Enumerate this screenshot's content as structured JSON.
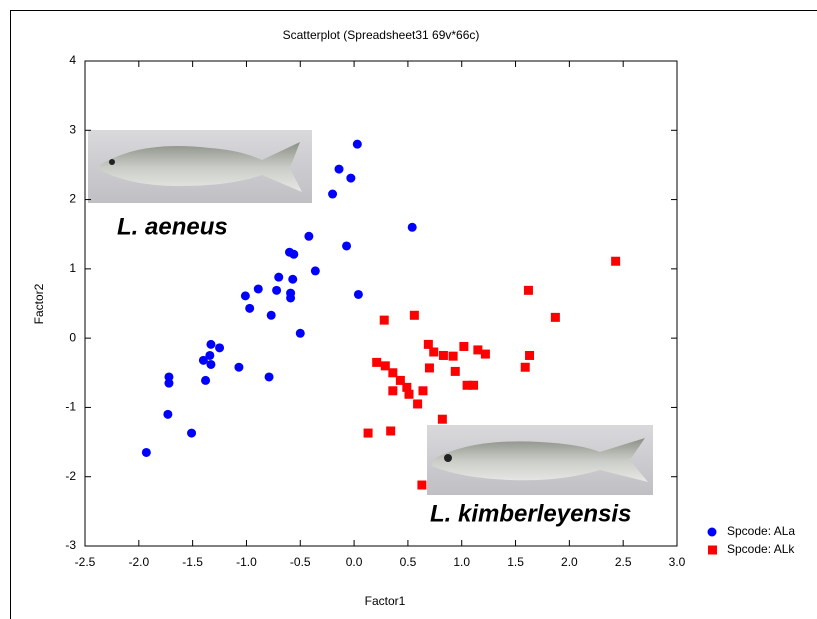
{
  "chart_data": {
    "type": "scatter",
    "title": "Scatterplot (Spreadsheet31 69v*66c)",
    "x_label": "Factor1",
    "y_label": "Factor2",
    "annotations": [
      "L. aeneus",
      "L. kimberleyensis"
    ],
    "xlim": [
      -2.5,
      3.0
    ],
    "ylim": [
      -3,
      4
    ],
    "xticks": [
      -2.5,
      {
        "value": -2,
        "label": "-2.0"
      },
      -1.5,
      {
        "value": -1,
        "label": "-1.0"
      },
      -0.5,
      {
        "value": 0,
        "label": "0.0"
      },
      0.5,
      {
        "value": 1,
        "label": "1.0"
      },
      1.5,
      {
        "value": 2,
        "label": "2.0"
      },
      2.5,
      {
        "value": 3,
        "label": "3.0"
      }
    ],
    "yticks": [
      -3,
      -2,
      -1,
      0,
      1,
      2,
      3,
      4
    ],
    "legend": "right",
    "series": [
      {
        "name": "Spcode: ALa",
        "color": "#0000ff",
        "marker": "circle",
        "x": [
          0.03,
          -0.14,
          -0.03,
          -0.2,
          -0.42,
          -0.07,
          0.54,
          -0.6,
          -0.56,
          -0.36,
          -0.7,
          -0.57,
          -0.89,
          -0.72,
          -0.59,
          -0.59,
          0.04,
          -1.01,
          -0.97,
          -0.77,
          -0.5,
          -1.33,
          -1.25,
          -1.34,
          -1.4,
          -1.33,
          -1.07,
          -1.72,
          -0.79,
          -1.38,
          -1.72,
          -1.73,
          -1.51,
          -1.93
        ],
        "values": [
          2.8,
          2.44,
          2.31,
          2.08,
          1.47,
          1.33,
          1.6,
          1.24,
          1.21,
          0.97,
          0.88,
          0.85,
          0.71,
          0.69,
          0.65,
          0.58,
          0.63,
          0.61,
          0.43,
          0.33,
          0.07,
          -0.09,
          -0.14,
          -0.25,
          -0.32,
          -0.38,
          -0.42,
          -0.56,
          -0.56,
          -0.61,
          -0.65,
          -1.1,
          -1.37,
          -1.65
        ]
      },
      {
        "name": "Spcode: ALk",
        "color": "#ff0000",
        "marker": "square",
        "x": [
          2.43,
          1.62,
          0.56,
          0.28,
          1.87,
          0.69,
          1.02,
          1.15,
          1.22,
          0.74,
          0.83,
          0.92,
          1.63,
          0.21,
          0.29,
          1.59,
          0.7,
          0.94,
          0.36,
          0.43,
          1.05,
          1.11,
          0.49,
          0.36,
          0.64,
          0.51,
          0.59,
          0.82,
          0.34,
          0.13,
          0.63
        ],
        "values": [
          1.11,
          0.69,
          0.33,
          0.26,
          0.3,
          -0.09,
          -0.12,
          -0.17,
          -0.23,
          -0.2,
          -0.25,
          -0.26,
          -0.25,
          -0.35,
          -0.4,
          -0.42,
          -0.43,
          -0.48,
          -0.5,
          -0.61,
          -0.68,
          -0.68,
          -0.71,
          -0.76,
          -0.76,
          -0.81,
          -0.95,
          -1.17,
          -1.34,
          -1.37,
          -2.12
        ]
      }
    ]
  }
}
